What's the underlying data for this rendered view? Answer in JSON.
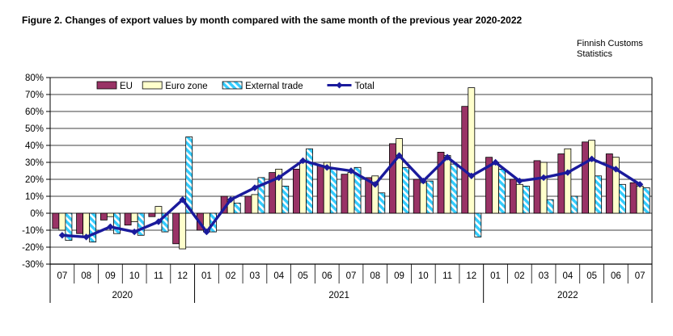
{
  "header": {
    "source_line1": "Finnish Customs",
    "source_line2": "Statistics"
  },
  "chart_data": {
    "type": "bar",
    "title": "Figure 2. Changes of export values by month compared with the same month of the previous year 2020-2022",
    "xlabel": "",
    "ylabel": "",
    "ylim": [
      -30,
      80
    ],
    "ytick_step": 10,
    "ytick_suffix": "%",
    "grid": true,
    "legend_position": "top-left-inside",
    "groups": [
      {
        "year": "2020",
        "months": [
          "07",
          "08",
          "09",
          "10",
          "11",
          "12"
        ]
      },
      {
        "year": "2021",
        "months": [
          "01",
          "02",
          "03",
          "04",
          "05",
          "06",
          "07",
          "08",
          "09",
          "10",
          "11",
          "12"
        ]
      },
      {
        "year": "2022",
        "months": [
          "01",
          "02",
          "03",
          "04",
          "05",
          "06",
          "07"
        ]
      }
    ],
    "series": [
      {
        "name": "EU",
        "type": "bar",
        "color": "#993366",
        "values": [
          -9,
          -12,
          -4,
          -7,
          -2,
          -18,
          -10,
          10,
          10,
          24,
          26,
          28,
          23,
          21,
          41,
          20,
          36,
          63,
          33,
          20,
          31,
          35,
          42,
          35,
          18
        ]
      },
      {
        "name": "Euro zone",
        "type": "bar",
        "color": "#FFFFCC",
        "values": [
          -10,
          -14,
          -2,
          -5,
          4,
          -21,
          -11,
          8,
          11,
          26,
          30,
          30,
          24,
          22,
          44,
          18,
          34,
          74,
          30,
          17,
          30,
          38,
          43,
          33,
          16
        ]
      },
      {
        "name": "External trade",
        "type": "bar",
        "color": "#33CCFF",
        "pattern": "diagonal-hatch",
        "values": [
          -16,
          -17,
          -12,
          -13,
          -11,
          45,
          -11,
          6,
          21,
          16,
          38,
          26,
          27,
          12,
          27,
          19,
          29,
          -14,
          26,
          16,
          8,
          10,
          22,
          17,
          15
        ]
      },
      {
        "name": "Total",
        "type": "line",
        "color": "#1a1a9c",
        "marker": "diamond",
        "values": [
          -13,
          -14,
          -8,
          -11,
          -5,
          8,
          -11,
          8,
          15,
          21,
          31,
          27,
          25,
          17,
          34,
          19,
          33,
          22,
          30,
          19,
          21,
          24,
          32,
          26,
          17
        ]
      }
    ]
  }
}
